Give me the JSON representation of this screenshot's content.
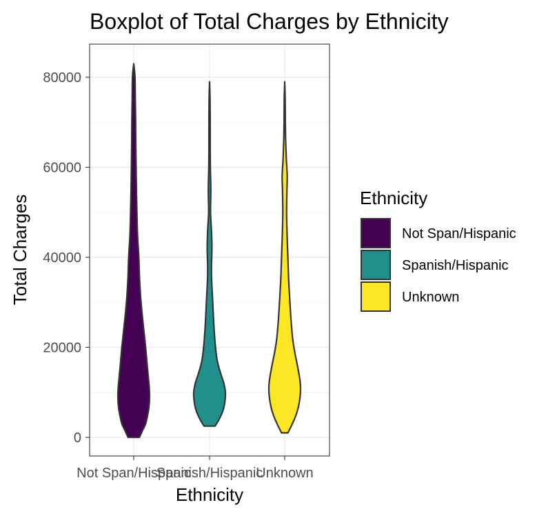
{
  "chart_data": {
    "type": "violin",
    "title": "Boxplot of Total Charges by Ethnicity",
    "xlabel": "Ethnicity",
    "ylabel": "Total Charges",
    "ylim": [
      -4000,
      87000
    ],
    "yticks": [
      0,
      20000,
      40000,
      60000,
      80000
    ],
    "ytick_labels": [
      "0",
      "20000",
      "40000",
      "60000",
      "80000"
    ],
    "grid": true,
    "legend": {
      "title": "Ethnicity",
      "placement": "right"
    },
    "categories": [
      "Not Span/Hispanic",
      "Spanish/Hispanic",
      "Unknown"
    ],
    "series": [
      {
        "name": "Not Span/Hispanic",
        "color": "#440154",
        "min": 0,
        "max": 83000,
        "density": [
          [
            0,
            0.36
          ],
          [
            1500,
            0.55
          ],
          [
            3000,
            0.75
          ],
          [
            5000,
            0.88
          ],
          [
            7000,
            0.97
          ],
          [
            9000,
            1.0
          ],
          [
            11000,
            0.98
          ],
          [
            13000,
            0.93
          ],
          [
            16000,
            0.85
          ],
          [
            20000,
            0.75
          ],
          [
            25000,
            0.6
          ],
          [
            30000,
            0.46
          ],
          [
            35000,
            0.37
          ],
          [
            40000,
            0.32
          ],
          [
            45000,
            0.24
          ],
          [
            50000,
            0.2
          ],
          [
            55000,
            0.17
          ],
          [
            60000,
            0.15
          ],
          [
            65000,
            0.13
          ],
          [
            70000,
            0.12
          ],
          [
            75000,
            0.1
          ],
          [
            80000,
            0.08
          ],
          [
            83000,
            0.0
          ]
        ]
      },
      {
        "name": "Spanish/Hispanic",
        "color": "#21908c",
        "min": 2500,
        "max": 79000,
        "density": [
          [
            2500,
            0.35
          ],
          [
            4000,
            0.6
          ],
          [
            6000,
            0.85
          ],
          [
            8000,
            0.97
          ],
          [
            10000,
            1.0
          ],
          [
            12000,
            0.9
          ],
          [
            14000,
            0.72
          ],
          [
            16000,
            0.55
          ],
          [
            18000,
            0.44
          ],
          [
            21000,
            0.35
          ],
          [
            25000,
            0.27
          ],
          [
            30000,
            0.2
          ],
          [
            35000,
            0.13
          ],
          [
            38000,
            0.12
          ],
          [
            42000,
            0.15
          ],
          [
            46000,
            0.12
          ],
          [
            50000,
            0.06
          ],
          [
            55000,
            0.08
          ],
          [
            60000,
            0.05
          ],
          [
            65000,
            0.04
          ],
          [
            70000,
            0.04
          ],
          [
            75000,
            0.03
          ],
          [
            79000,
            0.0
          ]
        ]
      },
      {
        "name": "Unknown",
        "color": "#fde725",
        "min": 1000,
        "max": 79000,
        "density": [
          [
            1000,
            0.2
          ],
          [
            3000,
            0.48
          ],
          [
            5000,
            0.72
          ],
          [
            7000,
            0.88
          ],
          [
            9000,
            0.97
          ],
          [
            11000,
            1.0
          ],
          [
            13000,
            0.95
          ],
          [
            16000,
            0.8
          ],
          [
            19000,
            0.63
          ],
          [
            22000,
            0.5
          ],
          [
            26000,
            0.4
          ],
          [
            30000,
            0.33
          ],
          [
            35000,
            0.25
          ],
          [
            40000,
            0.2
          ],
          [
            45000,
            0.15
          ],
          [
            50000,
            0.12
          ],
          [
            55000,
            0.14
          ],
          [
            58000,
            0.16
          ],
          [
            62000,
            0.1
          ],
          [
            66000,
            0.06
          ],
          [
            70000,
            0.04
          ],
          [
            75000,
            0.03
          ],
          [
            79000,
            0.0
          ]
        ]
      }
    ]
  }
}
